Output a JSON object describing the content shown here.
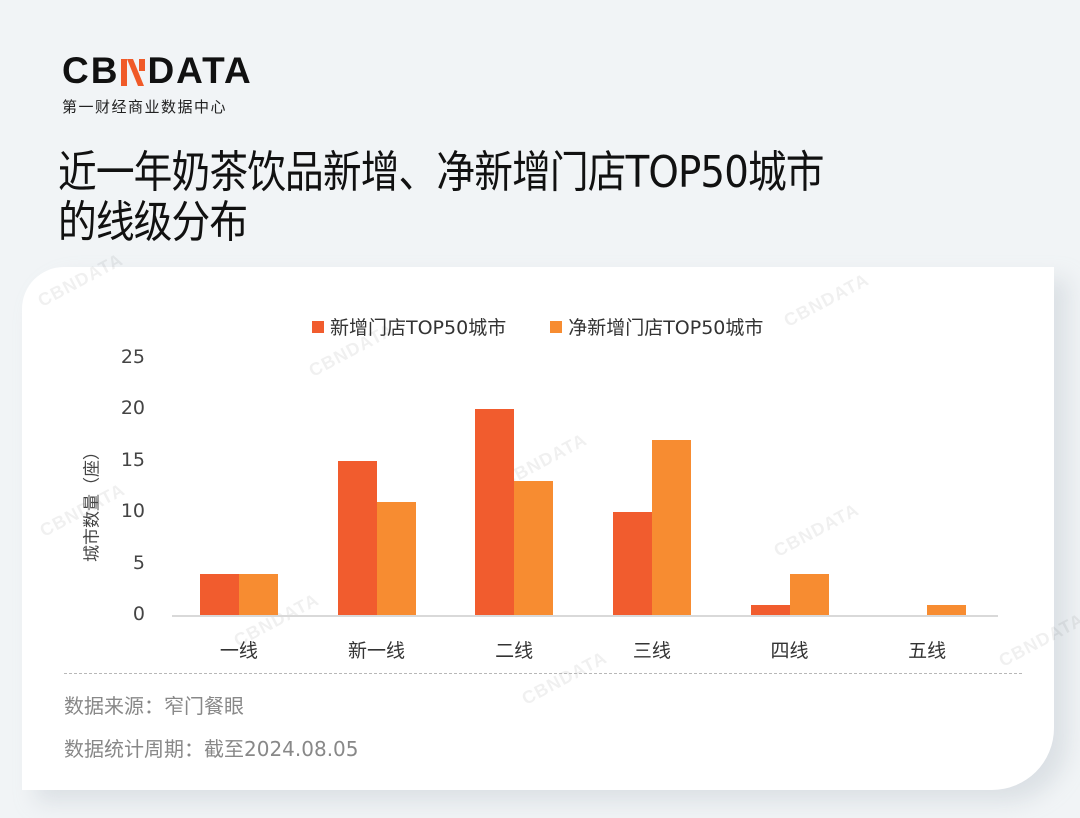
{
  "brand": {
    "logo_left": "CB",
    "logo_right": "DATA",
    "logo_mark_color": "#f05a28",
    "subtitle": "第一财经商业数据中心"
  },
  "title": {
    "line1": "近一年奶茶饮品新增、净新增门店TOP50城市",
    "line2": "的线级分布"
  },
  "watermark": "CBNDATA",
  "chart_data": {
    "type": "bar",
    "title": "近一年奶茶饮品新增、净新增门店TOP50城市的线级分布",
    "categories": [
      "一线",
      "新一线",
      "二线",
      "三线",
      "四线",
      "五线"
    ],
    "series": [
      {
        "name": "新增门店TOP50城市",
        "color": "#f15c2e",
        "values": [
          4,
          15,
          20,
          10,
          1,
          0
        ]
      },
      {
        "name": "净新增门店TOP50城市",
        "color": "#f78c31",
        "values": [
          4,
          11,
          13,
          17,
          4,
          1
        ]
      }
    ],
    "xlabel": "",
    "ylabel": "城市数量（座）",
    "ylim": [
      0,
      25
    ],
    "yticks": [
      0,
      5,
      10,
      15,
      20,
      25
    ],
    "grid": false,
    "legend_position": "top"
  },
  "footer": {
    "source": "数据来源：窄门餐眼",
    "period": "数据统计周期：截至2024.08.05"
  }
}
